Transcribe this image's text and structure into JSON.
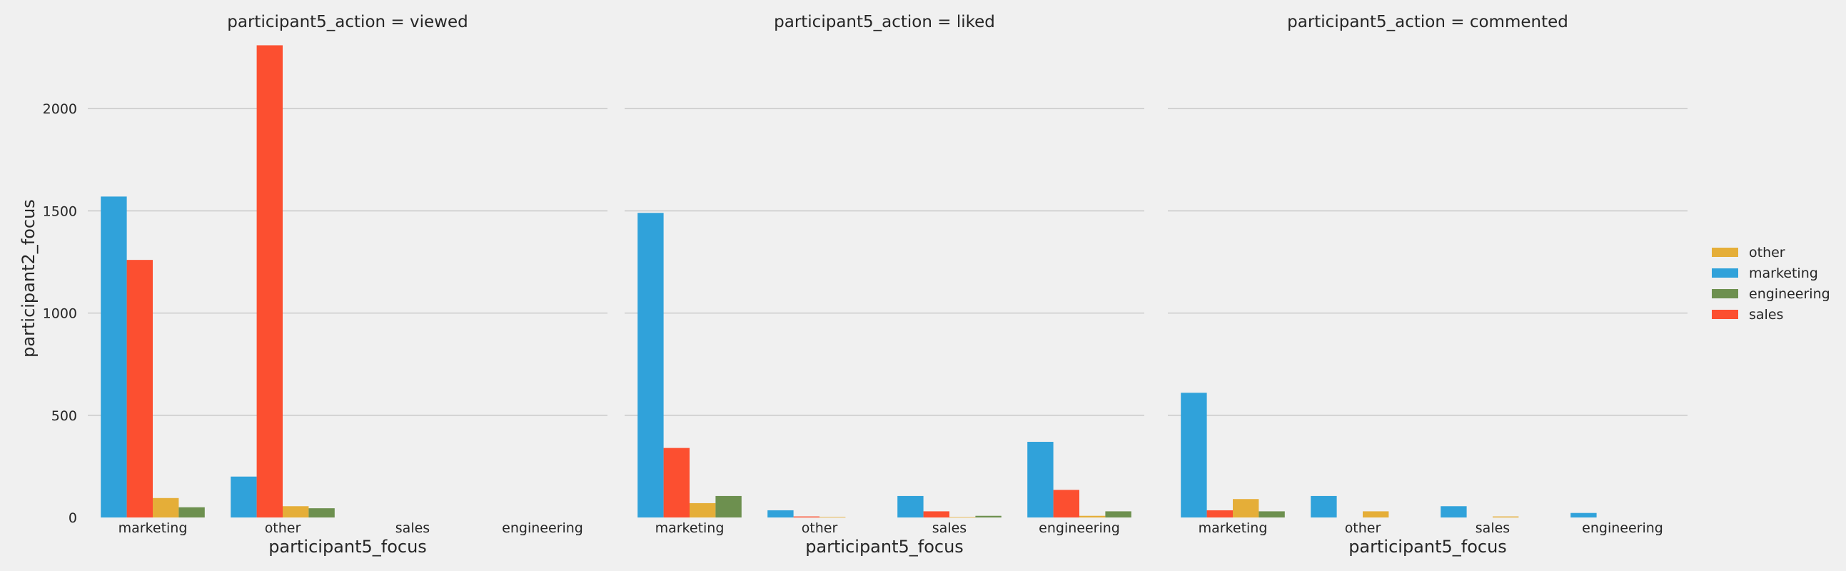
{
  "chart_data": {
    "type": "bar",
    "ylabel": "participant2_focus",
    "ylim": [
      0,
      2350
    ],
    "yticks": [
      0,
      500,
      1000,
      1500,
      2000
    ],
    "grid": true,
    "legend_position": "right",
    "hue_order": [
      "marketing",
      "sales",
      "other",
      "engineering"
    ],
    "legend_order": [
      "other",
      "marketing",
      "engineering",
      "sales"
    ],
    "colors": {
      "marketing": "#30a2da",
      "sales": "#fc4f30",
      "other": "#e5ae38",
      "engineering": "#6d904f"
    },
    "panels": [
      {
        "title": "participant5_action = viewed",
        "xlabel": "participant5_focus",
        "categories": [
          "marketing",
          "other",
          "sales",
          "engineering"
        ],
        "series": [
          {
            "name": "marketing",
            "values": [
              1570,
              200,
              0,
              0
            ]
          },
          {
            "name": "sales",
            "values": [
              1260,
              2310,
              0,
              0
            ]
          },
          {
            "name": "other",
            "values": [
              95,
              55,
              0,
              0
            ]
          },
          {
            "name": "engineering",
            "values": [
              50,
              45,
              0,
              0
            ]
          }
        ]
      },
      {
        "title": "participant5_action = liked",
        "xlabel": "participant5_focus",
        "categories": [
          "marketing",
          "other",
          "sales",
          "engineering"
        ],
        "series": [
          {
            "name": "marketing",
            "values": [
              1490,
              35,
              105,
              370
            ]
          },
          {
            "name": "sales",
            "values": [
              340,
              5,
              30,
              135
            ]
          },
          {
            "name": "other",
            "values": [
              70,
              3,
              2,
              8
            ]
          },
          {
            "name": "engineering",
            "values": [
              105,
              0,
              8,
              30
            ]
          }
        ]
      },
      {
        "title": "participant5_action = commented",
        "xlabel": "participant5_focus",
        "categories": [
          "marketing",
          "other",
          "sales",
          "engineering"
        ],
        "series": [
          {
            "name": "marketing",
            "values": [
              610,
              105,
              55,
              22
            ]
          },
          {
            "name": "sales",
            "values": [
              35,
              0,
              0,
              0
            ]
          },
          {
            "name": "other",
            "values": [
              90,
              30,
              5,
              0
            ]
          },
          {
            "name": "engineering",
            "values": [
              30,
              0,
              0,
              0
            ]
          }
        ]
      }
    ]
  }
}
